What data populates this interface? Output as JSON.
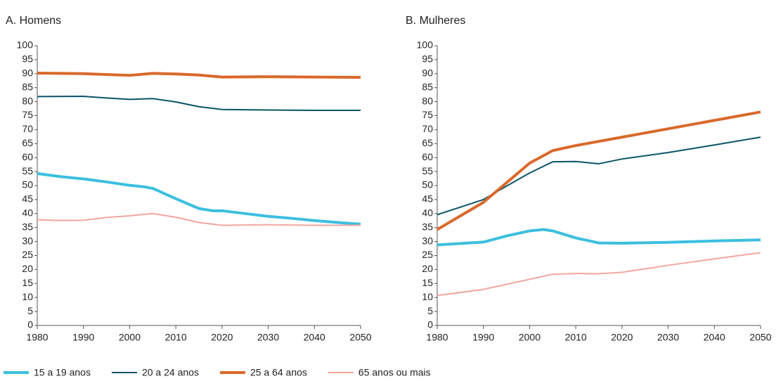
{
  "chart_data": [
    {
      "type": "line",
      "title": "A. Homens",
      "xlim": [
        1980,
        2050
      ],
      "xticks": [
        1980,
        1990,
        2000,
        2010,
        2020,
        2030,
        2040,
        2050
      ],
      "ylim": [
        0,
        100
      ],
      "yticks": [
        0,
        5,
        10,
        15,
        20,
        25,
        30,
        35,
        40,
        45,
        50,
        55,
        60,
        65,
        70,
        75,
        80,
        85,
        90,
        95,
        100
      ],
      "series": [
        {
          "name": "15 a 19 anos",
          "color": "#3cbfdf",
          "line_width": 4,
          "x": [
            1980,
            1985,
            1990,
            1995,
            2000,
            2003,
            2005,
            2010,
            2015,
            2018,
            2020,
            2025,
            2030,
            2035,
            2040,
            2045,
            2050
          ],
          "values": [
            54.3,
            53.2,
            52.4,
            51.3,
            50.1,
            49.6,
            49.0,
            45.3,
            41.8,
            41.0,
            41.0,
            40.0,
            39.0,
            38.3,
            37.5,
            36.8,
            36.2
          ]
        },
        {
          "name": "20 a 24 anos",
          "color": "#0b5566",
          "line_width": 2,
          "x": [
            1980,
            1990,
            1995,
            2000,
            2005,
            2010,
            2015,
            2020,
            2030,
            2040,
            2050
          ],
          "values": [
            81.8,
            81.9,
            81.3,
            80.8,
            81.1,
            79.9,
            78.2,
            77.2,
            77.0,
            76.9,
            76.9
          ]
        },
        {
          "name": "25 a 64 anos",
          "color": "#d9692b",
          "line_width": 4,
          "x": [
            1980,
            1990,
            2000,
            2005,
            2010,
            2015,
            2020,
            2030,
            2040,
            2050
          ],
          "values": [
            90.2,
            90.0,
            89.4,
            90.1,
            89.9,
            89.5,
            88.8,
            88.9,
            88.8,
            88.7
          ]
        },
        {
          "name": "65 anos ou mais",
          "color": "#f3a6a0",
          "line_width": 2,
          "x": [
            1980,
            1985,
            1990,
            1995,
            2000,
            2005,
            2010,
            2015,
            2020,
            2030,
            2040,
            2050
          ],
          "values": [
            37.8,
            37.5,
            37.6,
            38.6,
            39.2,
            40.0,
            38.7,
            36.8,
            35.8,
            36.0,
            35.8,
            35.8
          ]
        }
      ]
    },
    {
      "type": "line",
      "title": "B. Mulheres",
      "xlim": [
        1980,
        2050
      ],
      "xticks": [
        1980,
        1990,
        2000,
        2010,
        2020,
        2030,
        2040,
        2050
      ],
      "ylim": [
        0,
        100
      ],
      "yticks": [
        0,
        5,
        10,
        15,
        20,
        25,
        30,
        35,
        40,
        45,
        50,
        55,
        60,
        65,
        70,
        75,
        80,
        85,
        90,
        95,
        100
      ],
      "series": [
        {
          "color": "#3cbfdf",
          "line_width": 4,
          "x": [
            1980,
            1990,
            1995,
            2000,
            2003,
            2005,
            2010,
            2015,
            2020,
            2030,
            2040,
            2050
          ],
          "values": [
            28.8,
            29.8,
            32.0,
            33.8,
            34.3,
            33.8,
            31.3,
            29.5,
            29.4,
            29.7,
            30.2,
            30.6
          ]
        },
        {
          "color": "#0b5566",
          "line_width": 2,
          "x": [
            1980,
            1990,
            1995,
            2000,
            2005,
            2010,
            2015,
            2020,
            2030,
            2040,
            2050
          ],
          "values": [
            39.6,
            45.0,
            49.8,
            54.5,
            58.5,
            58.6,
            57.8,
            59.5,
            61.8,
            64.5,
            67.3
          ]
        },
        {
          "color": "#d9692b",
          "line_width": 4,
          "x": [
            1980,
            1990,
            1995,
            2000,
            2005,
            2010,
            2020,
            2030,
            2040,
            2050
          ],
          "values": [
            34.3,
            44.0,
            51.0,
            58.0,
            62.5,
            64.3,
            67.3,
            70.3,
            73.3,
            76.3
          ]
        },
        {
          "color": "#f3a6a0",
          "line_width": 2,
          "x": [
            1980,
            1990,
            2000,
            2005,
            2010,
            2015,
            2020,
            2030,
            2040,
            2050
          ],
          "values": [
            10.7,
            12.9,
            16.5,
            18.3,
            18.6,
            18.5,
            19.0,
            21.5,
            23.8,
            26.0
          ]
        }
      ]
    }
  ]
}
